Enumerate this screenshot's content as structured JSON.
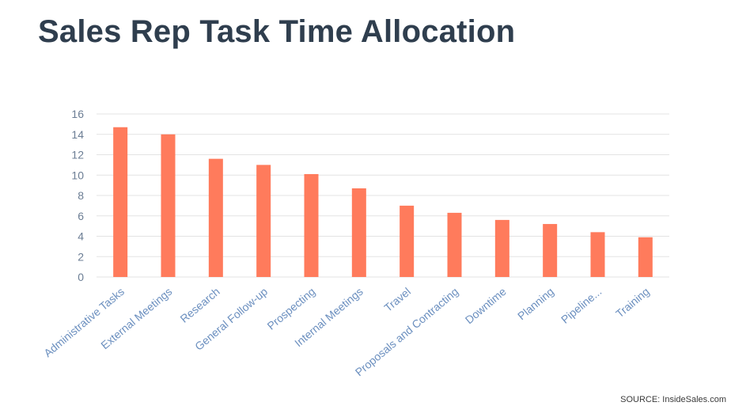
{
  "colors": {
    "bar": "#ff7b5c",
    "grid": "#e3e3e3",
    "title": "#2f3e4e"
  },
  "source": "SOURCE: InsideSales.com",
  "chart_data": {
    "type": "bar",
    "title": "Sales Rep Task Time Allocation",
    "xlabel": "",
    "ylabel": "",
    "ylim": [
      0,
      16
    ],
    "yticks": [
      0,
      2,
      4,
      6,
      8,
      10,
      12,
      14,
      16
    ],
    "grid": true,
    "categories": [
      "Administrative Tasks",
      "External Meetings",
      "Research",
      "General Follow-up",
      "Prospecting",
      "Internal Meetings",
      "Travel",
      "Proposals and Contracting",
      "Downtime",
      "Planning",
      "Pipeline...",
      "Training"
    ],
    "values": [
      14.7,
      14.0,
      11.6,
      11.0,
      10.1,
      8.7,
      7.0,
      6.3,
      5.6,
      5.2,
      4.4,
      3.9
    ]
  }
}
